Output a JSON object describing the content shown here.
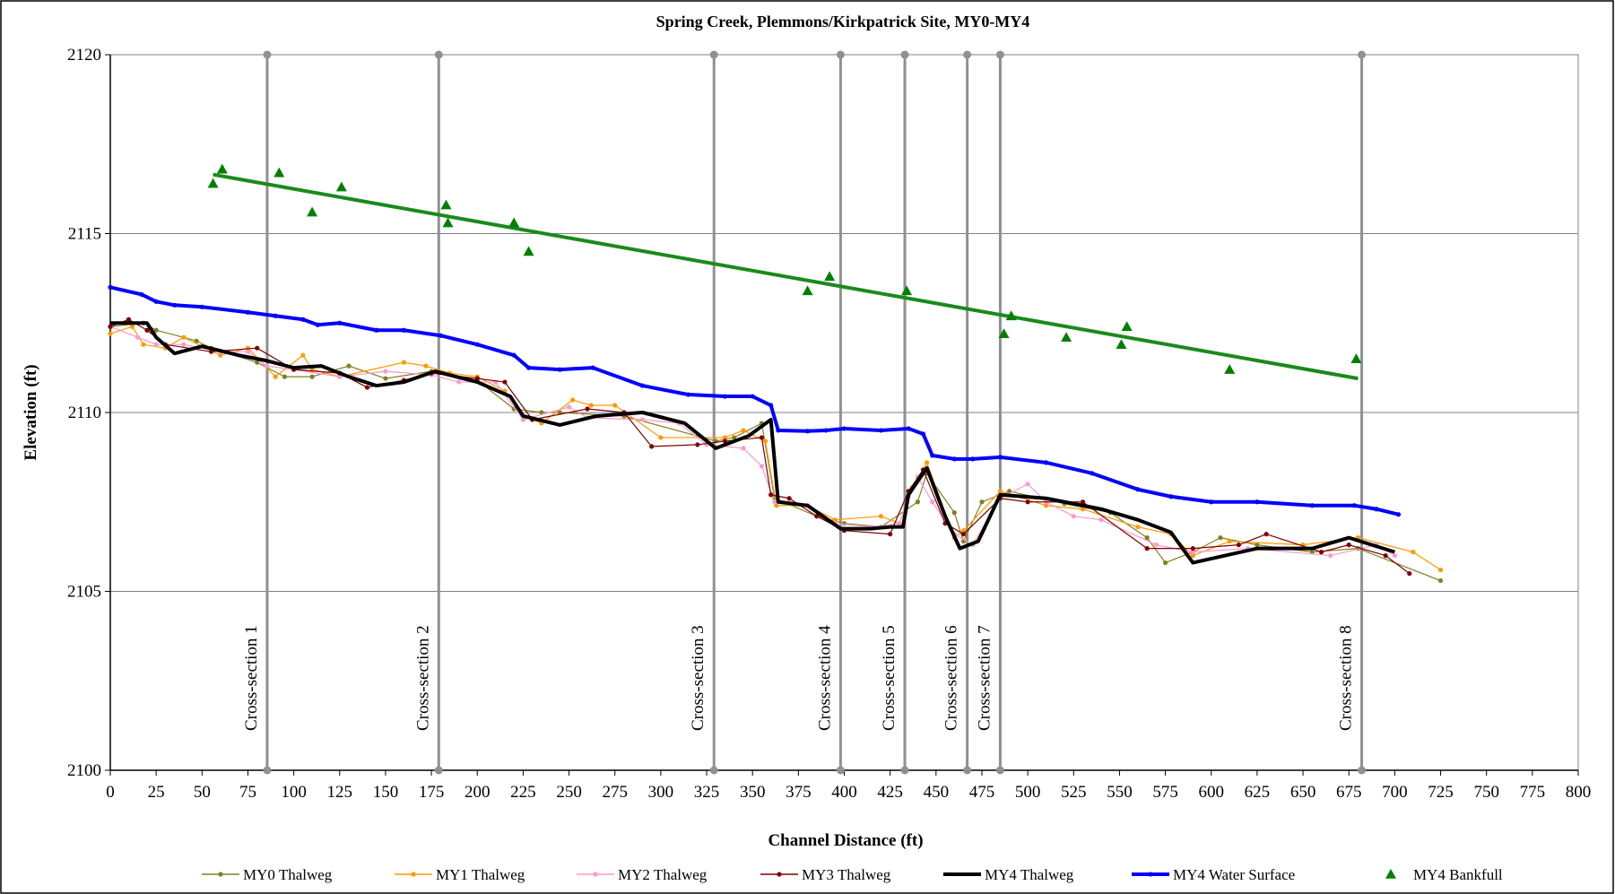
{
  "chart_data": {
    "type": "line",
    "title": "Spring Creek, Plemmons/Kirkpatrick Site, MY0-MY4",
    "x_label": "Channel Distance (ft)",
    "y_label": "Elevation (ft)",
    "xlim": [
      0,
      800
    ],
    "ylim": [
      2100,
      2120
    ],
    "xticks": [
      0,
      25,
      50,
      75,
      100,
      125,
      150,
      175,
      200,
      225,
      250,
      275,
      300,
      325,
      350,
      375,
      400,
      425,
      450,
      475,
      500,
      525,
      550,
      575,
      600,
      625,
      650,
      675,
      700,
      725,
      750,
      775,
      800
    ],
    "yticks": [
      2100,
      2105,
      2110,
      2115,
      2120
    ],
    "grid": true,
    "legend": "bottom",
    "series": [
      {
        "name": "MY0 Thalweg",
        "color": "#808020",
        "marker": "circle",
        "x": [
          0,
          18,
          25,
          47,
          55,
          80,
          95,
          110,
          130,
          150,
          175,
          200,
          220,
          235,
          245,
          280,
          330,
          340,
          355,
          362,
          385,
          400,
          420,
          440,
          445,
          460,
          465,
          475,
          490,
          520,
          545,
          565,
          575,
          590,
          605,
          625,
          655,
          680,
          725
        ],
        "values": [
          2112.4,
          2112.5,
          2112.3,
          2112.0,
          2111.8,
          2111.4,
          2111.0,
          2111.0,
          2111.3,
          2110.95,
          2111.15,
          2110.9,
          2110.1,
          2110.0,
          2110.0,
          2109.9,
          2109.2,
          2109.3,
          2109.7,
          2107.6,
          2107.1,
          2106.9,
          2106.8,
          2107.5,
          2108.3,
          2107.2,
          2106.4,
          2107.5,
          2107.8,
          2107.45,
          2107.2,
          2106.5,
          2105.8,
          2106.1,
          2106.5,
          2106.3,
          2106.1,
          2106.2,
          2105.3
        ]
      },
      {
        "name": "MY1 Thalweg",
        "color": "#ff9900",
        "marker": "circle",
        "x": [
          0,
          12,
          18,
          30,
          40,
          60,
          75,
          90,
          105,
          110,
          125,
          160,
          172,
          185,
          200,
          215,
          225,
          235,
          252,
          262,
          275,
          300,
          335,
          345,
          357,
          363,
          380,
          395,
          420,
          430,
          437,
          445,
          460,
          465,
          485,
          510,
          530,
          560,
          578,
          590,
          610,
          650,
          680,
          710,
          725
        ],
        "values": [
          2112.2,
          2112.4,
          2111.9,
          2111.8,
          2112.1,
          2111.6,
          2111.8,
          2111.0,
          2111.6,
          2111.2,
          2111.0,
          2111.4,
          2111.3,
          2111.1,
          2111.0,
          2110.6,
          2109.9,
          2109.7,
          2110.35,
          2110.2,
          2110.2,
          2109.3,
          2109.3,
          2109.5,
          2109.2,
          2107.4,
          2107.4,
          2107.0,
          2107.1,
          2106.9,
          2107.9,
          2108.6,
          2106.5,
          2106.7,
          2107.8,
          2107.4,
          2107.3,
          2106.8,
          2106.6,
          2106.0,
          2106.4,
          2106.3,
          2106.5,
          2106.1,
          2105.6
        ]
      },
      {
        "name": "MY2 Thalweg",
        "color": "#ff99cc",
        "marker": "circle",
        "x": [
          0,
          15,
          25,
          40,
          60,
          75,
          85,
          100,
          125,
          150,
          175,
          190,
          210,
          225,
          250,
          260,
          290,
          310,
          325,
          345,
          355,
          362,
          380,
          395,
          415,
          430,
          440,
          448,
          460,
          470,
          485,
          500,
          510,
          525,
          540,
          570,
          590,
          620,
          665,
          690,
          700
        ],
        "values": [
          2112.4,
          2112.1,
          2111.9,
          2111.9,
          2111.7,
          2111.7,
          2111.3,
          2111.2,
          2111.0,
          2111.15,
          2111.05,
          2110.85,
          2110.85,
          2109.8,
          2110.15,
          2109.85,
          2109.8,
          2109.7,
          2109.1,
          2109.0,
          2108.5,
          2107.5,
          2107.4,
          2106.9,
          2106.8,
          2106.9,
          2108.2,
          2107.5,
          2106.6,
          2106.3,
          2107.6,
          2108.0,
          2107.5,
          2107.1,
          2107.0,
          2106.3,
          2106.1,
          2106.2,
          2106.0,
          2106.3,
          2106.0
        ]
      },
      {
        "name": "MY3 Thalweg",
        "color": "#800000",
        "marker": "circle",
        "x": [
          0,
          10,
          20,
          30,
          55,
          80,
          100,
          125,
          140,
          160,
          175,
          200,
          215,
          230,
          260,
          280,
          295,
          320,
          335,
          355,
          360,
          370,
          385,
          400,
          425,
          435,
          443,
          455,
          465,
          485,
          500,
          530,
          565,
          590,
          615,
          630,
          660,
          675,
          695,
          708
        ],
        "values": [
          2112.4,
          2112.6,
          2112.3,
          2111.9,
          2111.7,
          2111.8,
          2111.2,
          2111.1,
          2110.7,
          2110.9,
          2111.1,
          2110.95,
          2110.85,
          2109.8,
          2110.1,
          2110.0,
          2109.05,
          2109.1,
          2109.2,
          2109.3,
          2107.7,
          2107.6,
          2107.1,
          2106.7,
          2106.6,
          2107.8,
          2108.4,
          2106.9,
          2106.6,
          2107.6,
          2107.5,
          2107.5,
          2106.2,
          2106.2,
          2106.3,
          2106.6,
          2106.1,
          2106.3,
          2106.0,
          2105.5
        ]
      },
      {
        "name": "MY4 Thalweg",
        "color": "#000000",
        "marker": "none",
        "x": [
          0,
          10,
          20,
          25,
          35,
          50,
          70,
          85,
          100,
          115,
          130,
          145,
          160,
          177,
          200,
          218,
          225,
          245,
          265,
          290,
          313,
          330,
          348,
          360,
          364,
          380,
          398,
          414,
          425,
          432,
          435,
          445,
          455,
          463,
          473,
          485,
          510,
          540,
          560,
          578,
          590,
          625,
          655,
          675,
          700
        ],
        "values": [
          2112.5,
          2112.5,
          2112.5,
          2112.1,
          2111.65,
          2111.85,
          2111.6,
          2111.45,
          2111.25,
          2111.3,
          2111.0,
          2110.75,
          2110.85,
          2111.15,
          2110.85,
          2110.45,
          2109.9,
          2109.65,
          2109.9,
          2110.0,
          2109.7,
          2109.0,
          2109.35,
          2109.8,
          2107.5,
          2107.4,
          2106.75,
          2106.75,
          2106.8,
          2106.8,
          2107.7,
          2108.45,
          2107.1,
          2106.2,
          2106.4,
          2107.7,
          2107.6,
          2107.3,
          2107.0,
          2106.65,
          2105.8,
          2106.2,
          2106.2,
          2106.5,
          2106.1
        ]
      },
      {
        "name": "MY4 Water Surface",
        "color": "#0000ff",
        "marker": "circle",
        "x": [
          0,
          17,
          25,
          35,
          50,
          75,
          90,
          105,
          113,
          125,
          145,
          160,
          180,
          200,
          220,
          228,
          245,
          263,
          290,
          315,
          335,
          350,
          360,
          364,
          380,
          390,
          400,
          420,
          435,
          443,
          448,
          460,
          470,
          485,
          510,
          535,
          560,
          578,
          600,
          625,
          655,
          678,
          690,
          702
        ],
        "values": [
          2113.5,
          2113.3,
          2113.1,
          2113.0,
          2112.95,
          2112.8,
          2112.7,
          2112.6,
          2112.45,
          2112.5,
          2112.3,
          2112.3,
          2112.15,
          2111.9,
          2111.6,
          2111.25,
          2111.2,
          2111.25,
          2110.75,
          2110.5,
          2110.45,
          2110.45,
          2110.2,
          2109.5,
          2109.48,
          2109.5,
          2109.55,
          2109.5,
          2109.55,
          2109.4,
          2108.8,
          2108.7,
          2108.7,
          2108.75,
          2108.6,
          2108.3,
          2107.85,
          2107.65,
          2107.5,
          2107.5,
          2107.4,
          2107.4,
          2107.3,
          2107.15
        ]
      },
      {
        "name": "MY4 Bankfull",
        "color": "#008000",
        "marker": "triangle",
        "line": false,
        "x": [
          56,
          61,
          92,
          110,
          126,
          183,
          184,
          220,
          228,
          380,
          392,
          434,
          487,
          491,
          521,
          551,
          554,
          610,
          679
        ],
        "values": [
          2116.4,
          2116.8,
          2116.7,
          2115.6,
          2116.3,
          2115.8,
          2115.3,
          2115.3,
          2114.5,
          2113.4,
          2113.8,
          2113.4,
          2112.2,
          2112.7,
          2112.1,
          2111.9,
          2112.4,
          2111.2,
          2111.5
        ]
      }
    ],
    "trendline": {
      "color": "#1a8a1a",
      "x": [
        56,
        680
      ],
      "values": [
        2116.65,
        2110.95
      ]
    },
    "annotations": [
      {
        "text": "Cross-section 1",
        "x": 85.5
      },
      {
        "text": "Cross-section 2",
        "x": 179
      },
      {
        "text": "Cross-section 3",
        "x": 329
      },
      {
        "text": "Cross-section 4",
        "x": 398
      },
      {
        "text": "Cross-section 5",
        "x": 433
      },
      {
        "text": "Cross-section 6",
        "x": 467
      },
      {
        "text": "Cross-section 7",
        "x": 485
      },
      {
        "text": "Cross-section 8",
        "x": 682
      }
    ]
  }
}
